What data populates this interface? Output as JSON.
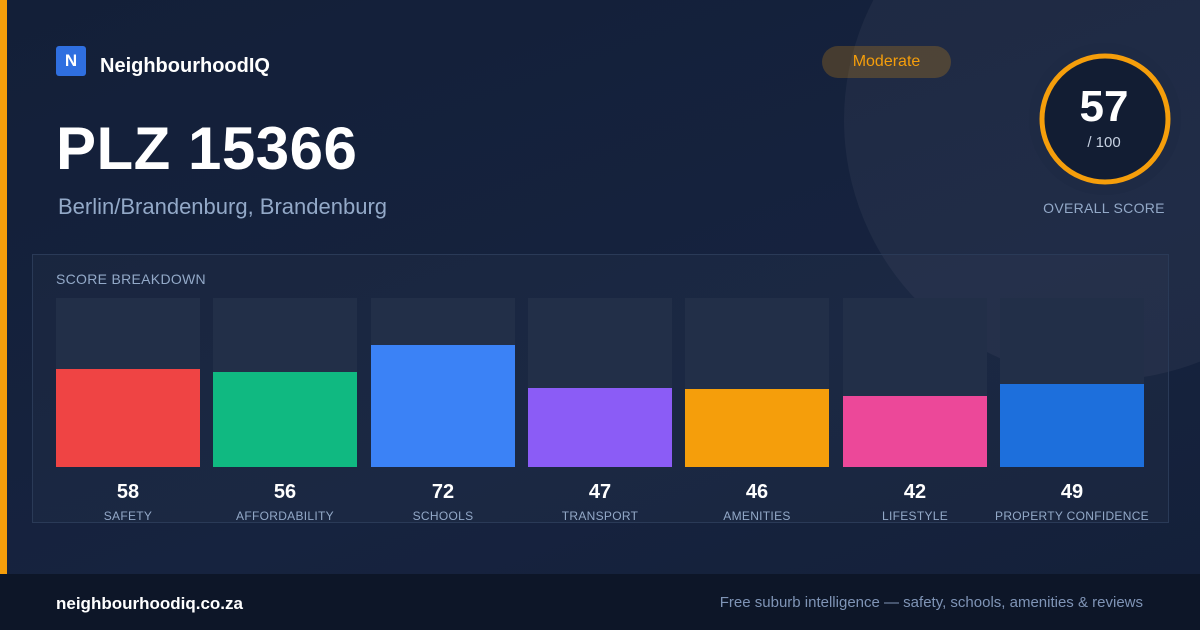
{
  "brand": {
    "logo_letter": "N",
    "name": "NeighbourhoodIQ"
  },
  "badge": {
    "label": "Moderate",
    "color": "#f59e0b"
  },
  "header": {
    "title": "PLZ 15366",
    "subtitle": "Berlin/Brandenburg, Brandenburg"
  },
  "overall_score": {
    "value": "57",
    "max_label": "/ 100",
    "caption": "OVERALL SCORE",
    "score": 57,
    "max": 100,
    "ring_color": "#f59e0b"
  },
  "breakdown": {
    "heading": "SCORE BREAKDOWN",
    "categories": [
      {
        "label": "SAFETY",
        "value": 58,
        "color": "#ef4444"
      },
      {
        "label": "AFFORDABILITY",
        "value": 56,
        "color": "#10b981"
      },
      {
        "label": "SCHOOLS",
        "value": 72,
        "color": "#3b82f6"
      },
      {
        "label": "TRANSPORT",
        "value": 47,
        "color": "#8b5cf6"
      },
      {
        "label": "AMENITIES",
        "value": 46,
        "color": "#f59e0b"
      },
      {
        "label": "LIFESTYLE",
        "value": 42,
        "color": "#ec4899"
      },
      {
        "label": "PROPERTY CONFIDENCE",
        "value": 49,
        "color": "#1d6fdc"
      }
    ]
  },
  "chart_data": {
    "type": "bar",
    "categories": [
      "SAFETY",
      "AFFORDABILITY",
      "SCHOOLS",
      "TRANSPORT",
      "AMENITIES",
      "LIFESTYLE",
      "PROPERTY CONFIDENCE"
    ],
    "values": [
      58,
      56,
      72,
      47,
      46,
      42,
      49
    ],
    "title": "SCORE BREAKDOWN",
    "ylim": [
      0,
      100
    ],
    "grid": false
  },
  "footer": {
    "domain": "neighbourhoodiq.co.za",
    "tagline": "Free suburb intelligence — safety, schools, amenities & reviews"
  }
}
